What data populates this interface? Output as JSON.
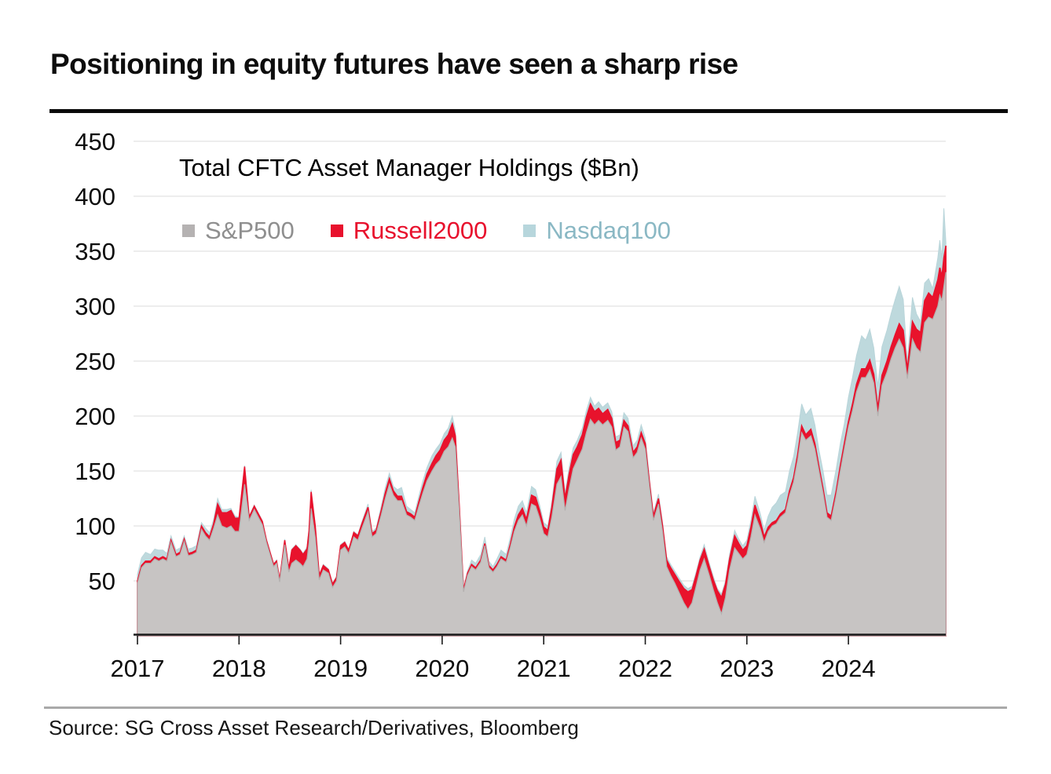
{
  "title": "Positioning in equity futures have seen a sharp rise",
  "source": "Source: SG Cross Asset Research/Derivatives, Bloomberg",
  "chart_data": {
    "type": "area",
    "stacked": true,
    "title": "Total CFTC Asset Manager Holdings ($Bn)",
    "xlabel": "",
    "ylabel": "",
    "grid": true,
    "legend_position": "top",
    "xlim": [
      2017.0,
      2024.97
    ],
    "ylim": [
      0,
      465
    ],
    "x_ticks": [
      "2017",
      "2018",
      "2019",
      "2020",
      "2021",
      "2022",
      "2023",
      "2024"
    ],
    "x_tick_values": [
      2017,
      2018,
      2019,
      2020,
      2021,
      2022,
      2023,
      2024
    ],
    "y_ticks": [
      50,
      100,
      150,
      200,
      250,
      300,
      350,
      400,
      450
    ],
    "colors": {
      "sp500_fill": "#c7c4c3",
      "sp500_edge": "#b4b1b0",
      "sp500_text": "#8f8f8f",
      "sp500_swatch": "#b5b2b2",
      "russell_fill": "#e8132c",
      "russell_edge": "#e8112d",
      "russell_text": "#e8112d",
      "russell_swatch": "#e8112d",
      "nasdaq_fill": "#bed9dd",
      "nasdaq_edge": "#b9d5da",
      "nasdaq_text": "#8ab8c4",
      "nasdaq_swatch": "#b7d6dc",
      "axis": "#1a1a1a",
      "gridline": "#e7e7e7",
      "tick_label": "#0d0d0d"
    },
    "legend": [
      {
        "label": "S&P500",
        "swatch": "#b5b2b2",
        "text_color": "#8f8f8f"
      },
      {
        "label": "Russell2000",
        "swatch": "#e8112d",
        "text_color": "#e8112d"
      },
      {
        "label": "Nasdaq100",
        "swatch": "#b7d6dc",
        "text_color": "#8ab8c4"
      }
    ],
    "x": [
      2017.0,
      2017.04,
      2017.08,
      2017.13,
      2017.17,
      2017.21,
      2017.25,
      2017.29,
      2017.33,
      2017.38,
      2017.42,
      2017.46,
      2017.5,
      2017.54,
      2017.58,
      2017.63,
      2017.67,
      2017.71,
      2017.75,
      2017.79,
      2017.83,
      2017.88,
      2017.92,
      2017.96,
      2018.0,
      2018.055,
      2018.1,
      2018.15,
      2018.23,
      2018.27,
      2018.34,
      2018.37,
      2018.4,
      2018.45,
      2018.49,
      2018.52,
      2018.56,
      2018.6,
      2018.63,
      2018.67,
      2018.69,
      2018.71,
      2018.75,
      2018.79,
      2018.83,
      2018.88,
      2018.92,
      2018.96,
      2019.0,
      2019.04,
      2019.08,
      2019.13,
      2019.17,
      2019.21,
      2019.27,
      2019.31,
      2019.35,
      2019.4,
      2019.44,
      2019.48,
      2019.52,
      2019.56,
      2019.6,
      2019.65,
      2019.69,
      2019.73,
      2019.77,
      2019.81,
      2019.85,
      2019.9,
      2019.94,
      2019.98,
      2020.02,
      2020.06,
      2020.1,
      2020.13,
      2020.17,
      2020.21,
      2020.25,
      2020.29,
      2020.33,
      2020.38,
      2020.42,
      2020.46,
      2020.5,
      2020.54,
      2020.58,
      2020.63,
      2020.67,
      2020.71,
      2020.75,
      2020.79,
      2020.83,
      2020.88,
      2020.92,
      2020.96,
      2021.0,
      2021.04,
      2021.08,
      2021.13,
      2021.17,
      2021.21,
      2021.25,
      2021.29,
      2021.33,
      2021.38,
      2021.42,
      2021.46,
      2021.5,
      2021.54,
      2021.58,
      2021.63,
      2021.67,
      2021.71,
      2021.75,
      2021.79,
      2021.83,
      2021.88,
      2021.92,
      2021.96,
      2022.0,
      2022.04,
      2022.08,
      2022.13,
      2022.17,
      2022.21,
      2022.25,
      2022.29,
      2022.33,
      2022.38,
      2022.42,
      2022.46,
      2022.5,
      2022.54,
      2022.58,
      2022.63,
      2022.67,
      2022.71,
      2022.75,
      2022.79,
      2022.83,
      2022.88,
      2022.92,
      2022.96,
      2023.0,
      2023.04,
      2023.08,
      2023.13,
      2023.17,
      2023.21,
      2023.25,
      2023.29,
      2023.33,
      2023.38,
      2023.42,
      2023.46,
      2023.5,
      2023.54,
      2023.58,
      2023.63,
      2023.67,
      2023.71,
      2023.75,
      2023.79,
      2023.83,
      2023.88,
      2023.92,
      2023.96,
      2024.0,
      2024.04,
      2024.08,
      2024.13,
      2024.17,
      2024.21,
      2024.25,
      2024.29,
      2024.33,
      2024.38,
      2024.42,
      2024.46,
      2024.5,
      2024.54,
      2024.58,
      2024.63,
      2024.67,
      2024.71,
      2024.75,
      2024.79,
      2024.83,
      2024.88,
      2024.9,
      2024.92,
      2024.94,
      2024.96
    ],
    "series": [
      {
        "name": "S&P500",
        "values": [
          48,
          62,
          66,
          66,
          70,
          68,
          70,
          68,
          85,
          72,
          74,
          86,
          73,
          74,
          76,
          97,
          91,
          87,
          98,
          110,
          100,
          98,
          100,
          95,
          95,
          138,
          105,
          115,
          101,
          85,
          63,
          66,
          49,
          83,
          58,
          66,
          69,
          66,
          63,
          70,
          85,
          116,
          90,
          51,
          60,
          57,
          44,
          50,
          78,
          81,
          75,
          90,
          87,
          98,
          113,
          90,
          93,
          110,
          125,
          138,
          128,
          123,
          123,
          110,
          108,
          105,
          118,
          130,
          141,
          150,
          156,
          160,
          168,
          172,
          180,
          172,
          110,
          40,
          55,
          63,
          60,
          67,
          82,
          62,
          58,
          63,
          70,
          67,
          80,
          95,
          105,
          110,
          100,
          120,
          118,
          107,
          93,
          90,
          108,
          138,
          145,
          114,
          134,
          152,
          160,
          170,
          185,
          197,
          192,
          196,
          192,
          196,
          190,
          169,
          172,
          190,
          186,
          162,
          167,
          180,
          170,
          136,
          105,
          120,
          95,
          63,
          55,
          48,
          40,
          30,
          24,
          30,
          45,
          60,
          70,
          55,
          42,
          30,
          20,
          35,
          60,
          80,
          75,
          70,
          74,
          90,
          110,
          98,
          85,
          95,
          100,
          102,
          108,
          112,
          128,
          140,
          160,
          185,
          178,
          182,
          170,
          150,
          130,
          108,
          105,
          128,
          150,
          170,
          190,
          205,
          222,
          235,
          235,
          242,
          230,
          200,
          228,
          240,
          252,
          262,
          270,
          262,
          234,
          270,
          262,
          258,
          285,
          290,
          288,
          300,
          310,
          305,
          318,
          331
        ]
      },
      {
        "name": "Russell2000",
        "values": [
          2,
          2,
          2,
          2,
          2,
          2,
          2,
          2,
          2,
          2,
          2,
          2,
          2,
          2,
          2,
          3,
          3,
          3,
          4,
          10,
          12,
          14,
          14,
          12,
          12,
          16,
          3,
          3,
          3,
          2,
          2,
          2,
          2,
          4,
          3,
          12,
          13,
          12,
          11,
          9,
          11,
          15,
          10,
          4,
          4,
          3,
          3,
          3,
          4,
          4,
          3,
          4,
          4,
          4,
          4,
          3,
          3,
          4,
          5,
          5,
          4,
          4,
          4,
          3,
          3,
          3,
          4,
          5,
          6,
          7,
          8,
          9,
          10,
          11,
          13,
          10,
          5,
          2,
          2,
          2,
          2,
          2,
          2,
          2,
          2,
          2,
          2,
          2,
          3,
          4,
          5,
          6,
          6,
          8,
          8,
          7,
          6,
          6,
          9,
          14,
          15,
          11,
          13,
          13,
          12,
          13,
          14,
          14,
          12,
          11,
          10,
          10,
          8,
          7,
          6,
          6,
          5,
          5,
          5,
          5,
          5,
          4,
          4,
          5,
          5,
          6,
          7,
          8,
          10,
          13,
          16,
          12,
          10,
          9,
          9,
          8,
          9,
          11,
          15,
          12,
          10,
          11,
          9,
          8,
          8,
          9,
          9,
          7,
          5,
          4,
          3,
          3,
          3,
          3,
          4,
          4,
          5,
          6,
          5,
          6,
          5,
          4,
          4,
          4,
          4,
          4,
          5,
          5,
          5,
          6,
          7,
          8,
          8,
          9,
          8,
          7,
          9,
          10,
          11,
          12,
          14,
          16,
          8,
          16,
          17,
          18,
          20,
          22,
          20,
          24,
          25,
          22,
          26,
          24
        ]
      },
      {
        "name": "Nasdaq100",
        "values": [
          6,
          7,
          8,
          6,
          7,
          8,
          6,
          5,
          4,
          4,
          4,
          3,
          4,
          4,
          4,
          3,
          4,
          4,
          4,
          5,
          3,
          3,
          2,
          2,
          1,
          1,
          1,
          1,
          1,
          1,
          1,
          1,
          1,
          1,
          1,
          1,
          1,
          1,
          1,
          2,
          2,
          2,
          1,
          1,
          1,
          1,
          1,
          1,
          1,
          1,
          1,
          1,
          1,
          2,
          3,
          2,
          2,
          4,
          5,
          5,
          4,
          6,
          8,
          5,
          4,
          4,
          5,
          6,
          6,
          7,
          6,
          6,
          6,
          6,
          7,
          5,
          3,
          1,
          2,
          4,
          4,
          5,
          6,
          4,
          3,
          5,
          6,
          5,
          6,
          7,
          8,
          7,
          6,
          8,
          7,
          5,
          4,
          4,
          5,
          7,
          7,
          5,
          6,
          6,
          6,
          6,
          6,
          6,
          5,
          6,
          6,
          6,
          6,
          5,
          5,
          7,
          7,
          6,
          6,
          7,
          5,
          4,
          3,
          4,
          3,
          3,
          3,
          3,
          3,
          3,
          3,
          3,
          3,
          3,
          4,
          3,
          3,
          2,
          3,
          3,
          4,
          5,
          4,
          4,
          5,
          6,
          8,
          7,
          6,
          10,
          14,
          16,
          17,
          16,
          18,
          19,
          20,
          20,
          18,
          19,
          17,
          15,
          16,
          16,
          19,
          20,
          20,
          18,
          22,
          24,
          26,
          30,
          26,
          28,
          24,
          20,
          26,
          28,
          30,
          32,
          34,
          28,
          7,
          22,
          14,
          10,
          16,
          13,
          8,
          20,
          25,
          16,
          45,
          3
        ]
      }
    ]
  }
}
